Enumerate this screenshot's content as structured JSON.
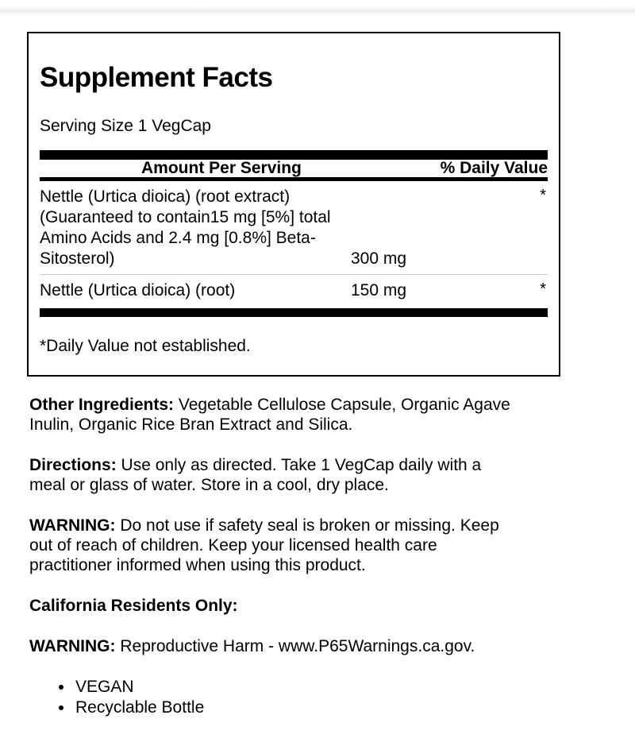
{
  "colors": {
    "text": "#000000",
    "bar": "#000000",
    "row_divider": "#cccccc",
    "page_edge_band": "#e8e8e8",
    "background": "#ffffff"
  },
  "panel": {
    "title": "Supplement Facts",
    "serving_size": "Serving Size 1 VegCap",
    "columns": {
      "amount": "Amount Per Serving",
      "daily_value": "% Daily Value"
    },
    "rows": [
      {
        "name": "Nettle (Urtica dioica) (root extract)\n(Guaranteed to contain15 mg [5%] total\nAmino Acids and 2.4 mg [0.8%] Beta-\nSitosterol)",
        "amount": "300 mg",
        "daily_value": "*"
      },
      {
        "name": "Nettle (Urtica dioica) (root)",
        "amount": "150 mg",
        "daily_value": "*"
      }
    ],
    "footnote": "*Daily Value not established."
  },
  "sections": {
    "other_ingredients": {
      "label": "Other Ingredients:",
      "text": "Vegetable Cellulose Capsule, Organic Agave\nInulin, Organic Rice Bran Extract and Silica."
    },
    "directions": {
      "label": "Directions:",
      "text": "Use only as directed. Take 1 VegCap daily with a\nmeal or glass of water. Store in a cool, dry place."
    },
    "warning": {
      "label": "WARNING:",
      "text": "Do not use if safety seal is broken or missing. Keep\nout of reach of children. Keep your licensed health care\npractitioner informed when using this product."
    },
    "california": {
      "label": "California Residents Only:"
    },
    "prop65": {
      "label": "WARNING:",
      "text": "Reproductive Harm - www.P65Warnings.ca.gov."
    },
    "features": [
      "VEGAN",
      "Recyclable Bottle"
    ]
  }
}
